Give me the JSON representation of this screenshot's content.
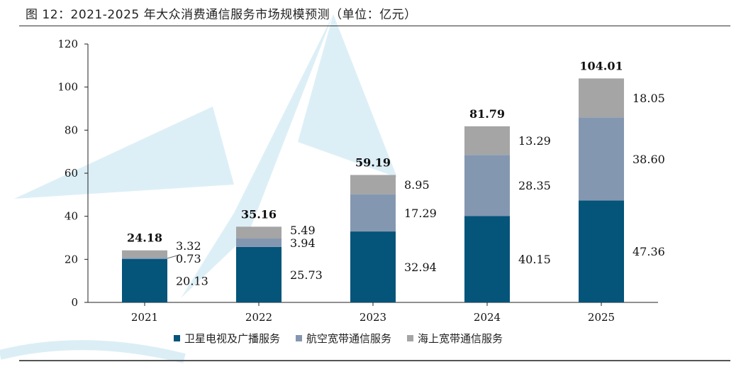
{
  "figure_title": "图 12：2021-2025 年大众消费通信服务市场规模预测（单位：亿元）",
  "chart_data": {
    "type": "bar",
    "stacked": true,
    "categories": [
      "2021",
      "2022",
      "2023",
      "2024",
      "2025"
    ],
    "series": [
      {
        "name": "卫星电视及广播服务",
        "color": "#05547a",
        "values": [
          20.13,
          25.73,
          32.94,
          40.15,
          47.36
        ],
        "labels": [
          "20.13",
          "25.73",
          "32.94",
          "40.15",
          "47.36"
        ]
      },
      {
        "name": "航空宽带通信服务",
        "color": "#8497b0",
        "values": [
          0.73,
          3.94,
          17.29,
          28.35,
          38.6
        ],
        "labels": [
          "0.73",
          "3.94",
          "17.29",
          "28.35",
          "38.60"
        ]
      },
      {
        "name": "海上宽带通信服务",
        "color": "#a5a5a5",
        "values": [
          3.32,
          5.49,
          8.95,
          13.29,
          18.05
        ],
        "labels": [
          "3.32",
          "5.49",
          "8.95",
          "13.29",
          "18.05"
        ]
      }
    ],
    "totals": [
      "24.18",
      "35.16",
      "59.19",
      "81.79",
      "104.01"
    ],
    "ylim": [
      0,
      120
    ],
    "yticks": [
      0,
      20,
      40,
      60,
      80,
      100,
      120
    ],
    "legend_position": "bottom",
    "grid": false
  }
}
